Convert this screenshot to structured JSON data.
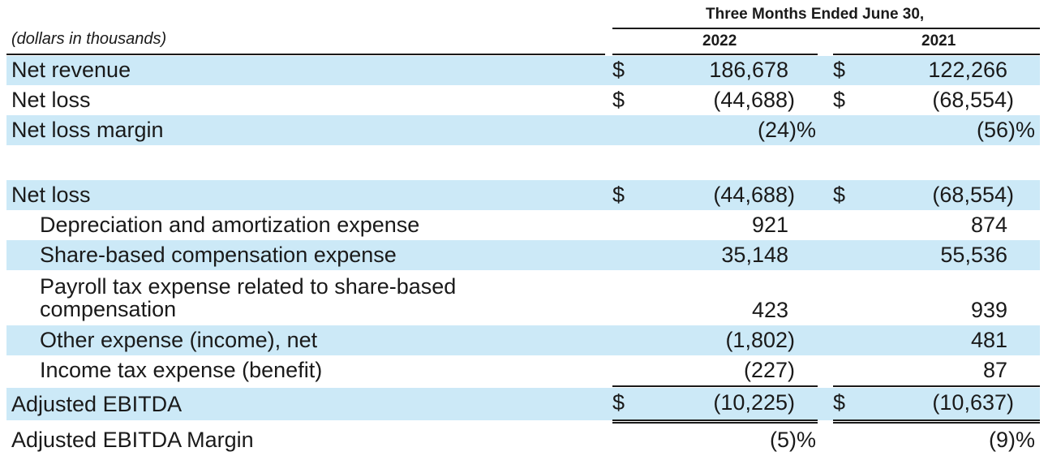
{
  "header": {
    "period": "Three Months Ended June 30,",
    "units": "(dollars in thousands)",
    "col_2022": "2022",
    "col_2021": "2021"
  },
  "rows": [
    {
      "label": "Net revenue",
      "d1": "$",
      "v1": "186,678",
      "s1": "",
      "d2": "$",
      "v2": "122,266",
      "s2": ""
    },
    {
      "label": "Net loss",
      "d1": "$",
      "v1": "(44,688)",
      "s1": "",
      "d2": "$",
      "v2": "(68,554)",
      "s2": ""
    },
    {
      "label": "Net loss margin",
      "d1": "",
      "v1": "(24)",
      "s1": "%",
      "d2": "",
      "v2": "(56)",
      "s2": "%"
    },
    {
      "label": "Net loss",
      "d1": "$",
      "v1": "(44,688)",
      "s1": "",
      "d2": "$",
      "v2": "(68,554)",
      "s2": ""
    },
    {
      "label": "Depreciation and amortization expense",
      "d1": "",
      "v1": "921",
      "s1": "",
      "d2": "",
      "v2": "874",
      "s2": ""
    },
    {
      "label": "Share-based compensation expense",
      "d1": "",
      "v1": "35,148",
      "s1": "",
      "d2": "",
      "v2": "55,536",
      "s2": ""
    },
    {
      "label_line1": "Payroll tax expense related to share-based",
      "label_line2": "compensation",
      "d1": "",
      "v1": "423",
      "s1": "",
      "d2": "",
      "v2": "939",
      "s2": ""
    },
    {
      "label": "Other expense (income), net",
      "d1": "",
      "v1": "(1,802)",
      "s1": "",
      "d2": "",
      "v2": "481",
      "s2": ""
    },
    {
      "label": "Income tax expense (benefit)",
      "d1": "",
      "v1": "(227)",
      "s1": "",
      "d2": "",
      "v2": "87",
      "s2": ""
    },
    {
      "label": "Adjusted EBITDA",
      "d1": "$",
      "v1": "(10,225)",
      "s1": "",
      "d2": "$",
      "v2": "(10,637)",
      "s2": ""
    },
    {
      "label": "Adjusted EBITDA Margin",
      "d1": "",
      "v1": "(5)",
      "s1": "%",
      "d2": "",
      "v2": "(9)",
      "s2": "%"
    }
  ]
}
